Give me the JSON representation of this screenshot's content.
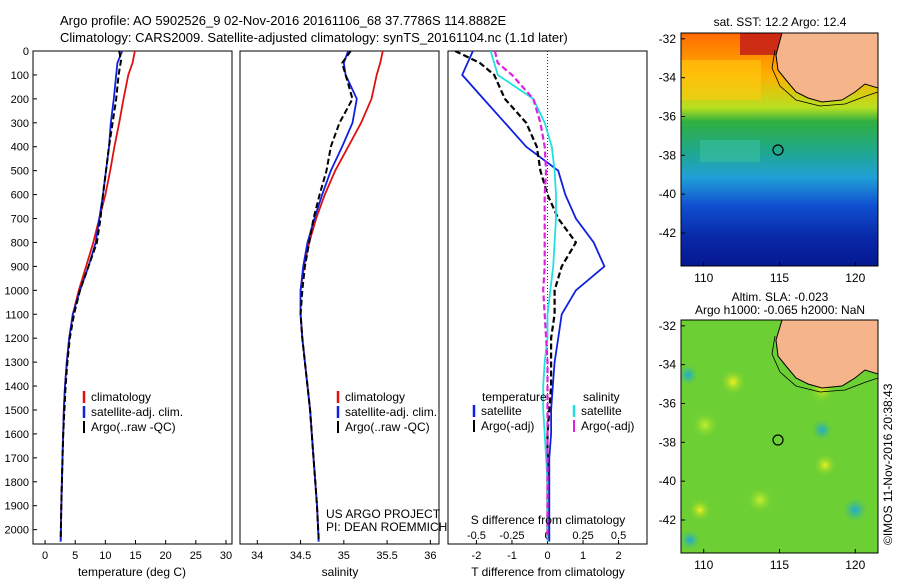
{
  "header": {
    "line1": "Argo profile: AO 5902526_9 02-Nov-2016 20161106_68 37.7786S 114.8882E",
    "line2": "Climatology: CARS2009. Satellite-adjusted climatology: synTS_20161104.nc (1.1d later)"
  },
  "colors": {
    "climatology": "#e01010",
    "satellite": "#1020e0",
    "argo": "#000000",
    "salinity_satellite": "#20e0e0",
    "salinity_argo": "#e020e0",
    "land": "#f5b48a"
  },
  "map_sst": {
    "title": "sat. SST: 12.2  Argo: 12.4",
    "x_ticks": [
      "110",
      "115",
      "120"
    ],
    "y_ticks": [
      "-32",
      "-34",
      "-36",
      "-38",
      "-40",
      "-42"
    ]
  },
  "map_sla": {
    "title_line1": "Altim. SLA: -0.023",
    "title_line2": "Argo h1000: -0.065  h2000: NaN",
    "x_ticks": [
      "110",
      "115",
      "120"
    ],
    "y_ticks": [
      "-32",
      "-34",
      "-36",
      "-38",
      "-40",
      "-42"
    ]
  },
  "footer": {
    "credit": "©IMOS 11-Nov-2016 20:38:43",
    "project_line1": "US ARGO PROJECT",
    "project_line2": "PI: DEAN ROEMMICH"
  },
  "chart_data": [
    {
      "type": "line",
      "xlabel": "temperature (deg C)",
      "ylabel": "",
      "xlim": [
        -2,
        31
      ],
      "ylim": [
        2060,
        0
      ],
      "x_ticks": [
        0,
        5,
        10,
        15,
        20,
        25,
        30
      ],
      "y_ticks": [
        0,
        100,
        200,
        300,
        400,
        500,
        600,
        700,
        800,
        900,
        1000,
        1100,
        1200,
        1300,
        1400,
        1500,
        1600,
        1700,
        1800,
        1900,
        2000
      ],
      "legend": [
        "climatology",
        "satellite-adj. clim.",
        "Argo(..raw -QC)"
      ],
      "legend_position": "lower-right",
      "series": [
        {
          "name": "climatology",
          "style": "solid",
          "color": "#e01010",
          "points": [
            [
              14.9,
              0
            ],
            [
              14.5,
              50
            ],
            [
              13.8,
              100
            ],
            [
              13.0,
              200
            ],
            [
              12.3,
              300
            ],
            [
              11.5,
              400
            ],
            [
              10.8,
              500
            ],
            [
              10.0,
              600
            ],
            [
              9.0,
              700
            ],
            [
              8.0,
              800
            ],
            [
              6.8,
              900
            ],
            [
              5.6,
              1000
            ],
            [
              4.6,
              1100
            ],
            [
              4.0,
              1200
            ],
            [
              3.6,
              1300
            ],
            [
              3.3,
              1400
            ],
            [
              3.1,
              1500
            ],
            [
              3.0,
              1600
            ],
            [
              2.9,
              1700
            ],
            [
              2.8,
              1800
            ],
            [
              2.7,
              1900
            ],
            [
              2.6,
              2050
            ]
          ]
        },
        {
          "name": "satellite-adj. clim.",
          "style": "solid",
          "color": "#1020e0",
          "points": [
            [
              12.8,
              0
            ],
            [
              12.0,
              50
            ],
            [
              11.8,
              100
            ],
            [
              11.4,
              200
            ],
            [
              10.9,
              300
            ],
            [
              10.6,
              400
            ],
            [
              10.1,
              500
            ],
            [
              9.6,
              600
            ],
            [
              9.0,
              700
            ],
            [
              8.4,
              800
            ],
            [
              7.2,
              900
            ],
            [
              5.8,
              1000
            ],
            [
              4.6,
              1100
            ],
            [
              4.0,
              1200
            ],
            [
              3.6,
              1300
            ],
            [
              3.3,
              1400
            ],
            [
              3.1,
              1500
            ],
            [
              3.0,
              1600
            ],
            [
              2.9,
              1700
            ],
            [
              2.8,
              1800
            ],
            [
              2.7,
              1900
            ],
            [
              2.6,
              2050
            ]
          ]
        },
        {
          "name": "Argo(..raw -QC)",
          "style": "dashed",
          "color": "#000000",
          "points": [
            [
              12.3,
              0
            ],
            [
              12.6,
              40
            ],
            [
              12.2,
              100
            ],
            [
              11.8,
              200
            ],
            [
              11.2,
              300
            ],
            [
              10.6,
              400
            ],
            [
              10.1,
              500
            ],
            [
              9.6,
              600
            ],
            [
              9.2,
              700
            ],
            [
              8.6,
              800
            ],
            [
              7.2,
              900
            ],
            [
              5.8,
              1000
            ],
            [
              4.8,
              1100
            ],
            [
              4.1,
              1200
            ],
            [
              3.7,
              1300
            ],
            [
              3.4,
              1400
            ],
            [
              3.2,
              1500
            ],
            [
              3.0,
              1600
            ],
            [
              2.9,
              1700
            ],
            [
              2.8,
              1800
            ],
            [
              2.7,
              1900
            ],
            [
              2.6,
              2040
            ]
          ]
        }
      ]
    },
    {
      "type": "line",
      "xlabel": "salinity",
      "ylabel": "",
      "xlim": [
        33.8,
        36.1
      ],
      "ylim": [
        2060,
        0
      ],
      "x_ticks": [
        34,
        34.5,
        35,
        35.5,
        36
      ],
      "legend": [
        "climatology",
        "satellite-adj. clim.",
        "Argo(..raw -QC)"
      ],
      "legend_position": "lower-right",
      "series": [
        {
          "name": "climatology",
          "style": "solid",
          "color": "#e01010",
          "points": [
            [
              35.45,
              0
            ],
            [
              35.42,
              50
            ],
            [
              35.38,
              100
            ],
            [
              35.32,
              200
            ],
            [
              35.2,
              300
            ],
            [
              35.05,
              400
            ],
            [
              34.9,
              500
            ],
            [
              34.78,
              600
            ],
            [
              34.68,
              700
            ],
            [
              34.6,
              800
            ],
            [
              34.54,
              900
            ],
            [
              34.5,
              1000
            ],
            [
              34.5,
              1100
            ],
            [
              34.52,
              1200
            ],
            [
              34.55,
              1300
            ],
            [
              34.58,
              1400
            ],
            [
              34.61,
              1500
            ],
            [
              34.63,
              1600
            ],
            [
              34.65,
              1700
            ],
            [
              34.67,
              1800
            ],
            [
              34.69,
              1900
            ],
            [
              34.71,
              2050
            ]
          ]
        },
        {
          "name": "satellite-adj. clim.",
          "style": "solid",
          "color": "#1020e0",
          "points": [
            [
              35.05,
              0
            ],
            [
              35.0,
              50
            ],
            [
              35.02,
              100
            ],
            [
              35.15,
              200
            ],
            [
              35.1,
              300
            ],
            [
              34.98,
              400
            ],
            [
              34.85,
              500
            ],
            [
              34.75,
              600
            ],
            [
              34.66,
              700
            ],
            [
              34.58,
              800
            ],
            [
              34.53,
              900
            ],
            [
              34.5,
              1000
            ],
            [
              34.5,
              1100
            ],
            [
              34.52,
              1200
            ],
            [
              34.55,
              1300
            ],
            [
              34.58,
              1400
            ],
            [
              34.61,
              1500
            ],
            [
              34.63,
              1600
            ],
            [
              34.65,
              1700
            ],
            [
              34.67,
              1800
            ],
            [
              34.69,
              1900
            ],
            [
              34.71,
              2050
            ]
          ]
        },
        {
          "name": "Argo(..raw -QC)",
          "style": "dashed",
          "color": "#000000",
          "points": [
            [
              35.08,
              0
            ],
            [
              34.98,
              50
            ],
            [
              35.02,
              100
            ],
            [
              35.1,
              200
            ],
            [
              34.95,
              300
            ],
            [
              34.85,
              400
            ],
            [
              34.8,
              500
            ],
            [
              34.72,
              600
            ],
            [
              34.65,
              700
            ],
            [
              34.6,
              800
            ],
            [
              34.55,
              900
            ],
            [
              34.52,
              1000
            ],
            [
              34.5,
              1100
            ],
            [
              34.52,
              1200
            ],
            [
              34.55,
              1300
            ],
            [
              34.58,
              1400
            ],
            [
              34.61,
              1500
            ],
            [
              34.63,
              1600
            ],
            [
              34.65,
              1700
            ],
            [
              34.67,
              1800
            ],
            [
              34.69,
              1900
            ],
            [
              34.71,
              2040
            ]
          ]
        }
      ]
    },
    {
      "type": "line",
      "xlabel": "T difference from climatology",
      "x2label": "S difference from climatology",
      "xlim": [
        -2.8,
        2.8
      ],
      "x_ticks": [
        "-2",
        "-1",
        "0",
        "1",
        "2"
      ],
      "x2_ticks": [
        "-0.5",
        "-0.25",
        "0",
        "0.25",
        "0.5"
      ],
      "ylim": [
        2060,
        0
      ],
      "legend_groups": {
        "temperature": [
          "satellite",
          "Argo(-adj)"
        ],
        "salinity": [
          "satellite",
          "Argo(-adj)"
        ]
      },
      "legend_headers": [
        "temperature",
        "salinity"
      ],
      "legend_position": "lower-center",
      "series": [
        {
          "name": "temperature satellite",
          "style": "solid",
          "color": "#1020e0",
          "points": [
            [
              -2.1,
              0
            ],
            [
              -2.4,
              100
            ],
            [
              -1.8,
              200
            ],
            [
              -1.2,
              300
            ],
            [
              -0.6,
              400
            ],
            [
              0.3,
              500
            ],
            [
              0.5,
              600
            ],
            [
              0.8,
              700
            ],
            [
              1.3,
              800
            ],
            [
              1.6,
              900
            ],
            [
              0.8,
              1000
            ],
            [
              0.4,
              1100
            ],
            [
              0.3,
              1200
            ],
            [
              0.2,
              1300
            ],
            [
              0.15,
              1400
            ],
            [
              0.1,
              1500
            ],
            [
              0.1,
              1600
            ],
            [
              0.05,
              1700
            ],
            [
              0.05,
              1800
            ],
            [
              0.05,
              1900
            ],
            [
              0.05,
              2050
            ]
          ]
        },
        {
          "name": "temperature Argo(-adj)",
          "style": "dashed",
          "color": "#000000",
          "points": [
            [
              -2.6,
              0
            ],
            [
              -1.9,
              50
            ],
            [
              -1.5,
              100
            ],
            [
              -1.2,
              200
            ],
            [
              -0.6,
              300
            ],
            [
              -0.3,
              400
            ],
            [
              -0.2,
              500
            ],
            [
              0.0,
              600
            ],
            [
              0.3,
              700
            ],
            [
              0.8,
              800
            ],
            [
              0.4,
              900
            ],
            [
              0.2,
              1000
            ],
            [
              0.2,
              1100
            ],
            [
              0.1,
              1200
            ],
            [
              0.1,
              1300
            ],
            [
              0.1,
              1400
            ],
            [
              0.05,
              1500
            ],
            [
              0.0,
              1600
            ],
            [
              0.0,
              1700
            ],
            [
              0.0,
              1800
            ],
            [
              0.0,
              1900
            ],
            [
              0.0,
              2040
            ]
          ]
        },
        {
          "name": "salinity satellite",
          "style": "solid",
          "color": "#20e0e0",
          "points": [
            [
              -0.4,
              0
            ],
            [
              -0.35,
              100
            ],
            [
              -0.1,
              200
            ],
            [
              -0.02,
              300
            ],
            [
              0.03,
              400
            ],
            [
              0.05,
              500
            ],
            [
              0.06,
              600
            ],
            [
              0.06,
              700
            ],
            [
              0.05,
              800
            ],
            [
              0.04,
              900
            ],
            [
              0.02,
              1000
            ],
            [
              0.0,
              1100
            ],
            [
              0.0,
              1200
            ],
            [
              -0.02,
              1300
            ],
            [
              -0.03,
              1400
            ],
            [
              -0.03,
              1500
            ],
            [
              -0.02,
              1600
            ],
            [
              -0.01,
              1700
            ],
            [
              0.0,
              1800
            ],
            [
              0.0,
              1900
            ],
            [
              0.0,
              2050
            ]
          ]
        },
        {
          "name": "salinity Argo(-adj)",
          "style": "dashed",
          "color": "#e020e0",
          "points": [
            [
              -0.37,
              0
            ],
            [
              -0.35,
              50
            ],
            [
              -0.25,
              100
            ],
            [
              -0.1,
              200
            ],
            [
              -0.05,
              300
            ],
            [
              -0.02,
              400
            ],
            [
              -0.01,
              500
            ],
            [
              -0.02,
              600
            ],
            [
              -0.02,
              700
            ],
            [
              -0.02,
              800
            ],
            [
              -0.02,
              900
            ],
            [
              -0.03,
              1000
            ],
            [
              -0.02,
              1100
            ],
            [
              -0.01,
              1200
            ],
            [
              0.0,
              1300
            ],
            [
              0.0,
              1400
            ],
            [
              0.0,
              1500
            ],
            [
              0.0,
              1600
            ],
            [
              0.0,
              1700
            ],
            [
              0.0,
              1800
            ],
            [
              0.0,
              1900
            ],
            [
              0.0,
              2040
            ]
          ]
        }
      ]
    }
  ]
}
